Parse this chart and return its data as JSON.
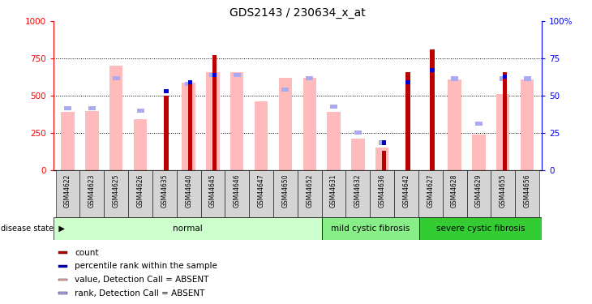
{
  "title": "GDS2143 / 230634_x_at",
  "samples": [
    "GSM44622",
    "GSM44623",
    "GSM44625",
    "GSM44626",
    "GSM44635",
    "GSM44640",
    "GSM44645",
    "GSM44646",
    "GSM44647",
    "GSM44650",
    "GSM44652",
    "GSM44631",
    "GSM44632",
    "GSM44636",
    "GSM44642",
    "GSM44627",
    "GSM44628",
    "GSM44629",
    "GSM44655",
    "GSM44656"
  ],
  "count_values": [
    0,
    0,
    0,
    0,
    500,
    590,
    775,
    0,
    0,
    0,
    0,
    0,
    0,
    130,
    660,
    810,
    0,
    0,
    660,
    0
  ],
  "rank_values": [
    0,
    0,
    0,
    0,
    530,
    590,
    640,
    0,
    0,
    540,
    0,
    0,
    0,
    185,
    590,
    670,
    0,
    0,
    630,
    0
  ],
  "absent_value": [
    390,
    395,
    700,
    345,
    0,
    590,
    660,
    660,
    460,
    620,
    620,
    390,
    210,
    150,
    0,
    0,
    610,
    240,
    510,
    610
  ],
  "absent_rank": [
    415,
    415,
    620,
    400,
    0,
    580,
    640,
    640,
    0,
    540,
    620,
    425,
    255,
    185,
    0,
    0,
    615,
    315,
    615,
    615
  ],
  "groups": [
    {
      "label": "normal",
      "start": 0,
      "end": 11,
      "color": "#ccffcc"
    },
    {
      "label": "mild cystic fibrosis",
      "start": 11,
      "end": 15,
      "color": "#88ee88"
    },
    {
      "label": "severe cystic fibrosis",
      "start": 15,
      "end": 20,
      "color": "#33cc33"
    }
  ],
  "color_count": "#bb0000",
  "color_rank": "#0000cc",
  "color_absent_value": "#ffbbbb",
  "color_absent_rank": "#aaaaee",
  "legend_items": [
    {
      "color": "#bb0000",
      "label": "count"
    },
    {
      "color": "#0000cc",
      "label": "percentile rank within the sample"
    },
    {
      "color": "#ffbbbb",
      "label": "value, Detection Call = ABSENT"
    },
    {
      "color": "#aaaaee",
      "label": "rank, Detection Call = ABSENT"
    }
  ]
}
